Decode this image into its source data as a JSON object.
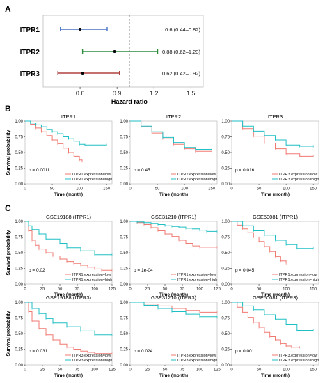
{
  "panels": {
    "A": "A",
    "B": "B",
    "C": "C"
  },
  "forest": {
    "xlabel": "Hazard ratio",
    "ticks": [
      "0.6",
      "0.9",
      "1.2",
      "1.5"
    ],
    "tick_values": [
      0.6,
      0.9,
      1.2,
      1.5
    ],
    "xlim": [
      0.3,
      1.6
    ],
    "ref": 1.0,
    "rows": [
      {
        "label": "ITPR1",
        "hr": 0.6,
        "lo": 0.44,
        "hi": 0.82,
        "text": "0.6 (0.44–0.82)",
        "color": "#4472c4"
      },
      {
        "label": "ITPR2",
        "hr": 0.88,
        "lo": 0.62,
        "hi": 1.23,
        "text": "0.88 (0.62–1.23)",
        "color": "#2e8b3e"
      },
      {
        "label": "ITPR3",
        "hr": 0.62,
        "lo": 0.42,
        "hi": 0.92,
        "text": "0.62 (0.42–0.92)",
        "color": "#b0413e"
      }
    ]
  },
  "km_common": {
    "ylabel": "Survival probability",
    "xlabel": "Time (month)",
    "yticks": [
      "0.00",
      "0.25",
      "0.50",
      "0.75",
      "1.00"
    ],
    "ytick_values": [
      0,
      0.25,
      0.5,
      0.75,
      1.0
    ],
    "low_color": "#f07a72",
    "high_color": "#1fbfc4"
  },
  "chart_data": [
    {
      "type": "line",
      "title": "ITPR1",
      "p": "p = 0.0011",
      "xticks": [
        0,
        50,
        100,
        150
      ],
      "xlim": [
        0,
        160
      ],
      "ylim": [
        0,
        1
      ],
      "series": [
        {
          "name": "ITPR1.expression=low",
          "x": [
            0,
            10,
            20,
            30,
            40,
            50,
            60,
            70,
            80,
            90,
            100,
            105
          ],
          "y": [
            1.0,
            0.95,
            0.89,
            0.83,
            0.77,
            0.7,
            0.64,
            0.57,
            0.5,
            0.44,
            0.38,
            0.36
          ]
        },
        {
          "name": "ITPR1.expression=high",
          "x": [
            0,
            10,
            20,
            30,
            40,
            50,
            60,
            70,
            80,
            90,
            100,
            110,
            125,
            150
          ],
          "y": [
            1.0,
            0.97,
            0.94,
            0.91,
            0.87,
            0.83,
            0.8,
            0.75,
            0.72,
            0.68,
            0.63,
            0.62,
            0.62,
            0.62
          ]
        }
      ]
    },
    {
      "type": "line",
      "title": "ITPR2",
      "p": "p = 0.45",
      "xticks": [
        0,
        50,
        100,
        150
      ],
      "xlim": [
        0,
        160
      ],
      "ylim": [
        0,
        1
      ],
      "series": [
        {
          "name": "ITPR2.expression=low",
          "x": [
            0,
            20,
            40,
            60,
            80,
            100,
            120,
            150
          ],
          "y": [
            1.0,
            0.91,
            0.81,
            0.72,
            0.63,
            0.56,
            0.52,
            0.52
          ]
        },
        {
          "name": "ITPR2.expression=high",
          "x": [
            0,
            20,
            40,
            60,
            80,
            100,
            120,
            150
          ],
          "y": [
            1.0,
            0.92,
            0.83,
            0.74,
            0.66,
            0.58,
            0.55,
            0.55
          ]
        }
      ]
    },
    {
      "type": "line",
      "title": "ITPR3",
      "p": "p = 0.016",
      "xticks": [
        0,
        50,
        100,
        150
      ],
      "xlim": [
        0,
        160
      ],
      "ylim": [
        0,
        1
      ],
      "series": [
        {
          "name": "ITPR3.expression=low",
          "x": [
            0,
            20,
            40,
            60,
            80,
            100,
            125,
            150
          ],
          "y": [
            1.0,
            0.88,
            0.76,
            0.65,
            0.56,
            0.48,
            0.44,
            0.44
          ]
        },
        {
          "name": "ITPR3.expression=high",
          "x": [
            0,
            20,
            40,
            60,
            80,
            100,
            125,
            150
          ],
          "y": [
            1.0,
            0.92,
            0.84,
            0.77,
            0.7,
            0.62,
            0.6,
            0.6
          ]
        }
      ]
    },
    {
      "type": "line",
      "title": "GSE19188 (ITPR1)",
      "p": "p = 0.02",
      "xticks": [
        0,
        25,
        50,
        75,
        100,
        125
      ],
      "xlim": [
        0,
        125
      ],
      "ylim": [
        0,
        1
      ],
      "series": [
        {
          "name": "ITPR1.expression=low",
          "x": [
            0,
            5,
            10,
            15,
            20,
            30,
            40,
            50,
            60,
            70,
            80,
            90,
            100,
            110,
            125
          ],
          "y": [
            1.0,
            0.85,
            0.7,
            0.62,
            0.56,
            0.5,
            0.45,
            0.4,
            0.36,
            0.33,
            0.3,
            0.27,
            0.24,
            0.22,
            0.22
          ]
        },
        {
          "name": "ITPR1.expression=high",
          "x": [
            0,
            5,
            10,
            20,
            30,
            50,
            60,
            80,
            100,
            125
          ],
          "y": [
            1.0,
            0.93,
            0.87,
            0.8,
            0.72,
            0.65,
            0.58,
            0.53,
            0.47,
            0.47
          ]
        }
      ]
    },
    {
      "type": "line",
      "title": "GSE31210 (ITPR1)",
      "p": "p = 1e-04",
      "xticks": [
        0,
        25,
        50,
        75,
        100,
        125
      ],
      "xlim": [
        0,
        125
      ],
      "ylim": [
        0,
        1
      ],
      "series": [
        {
          "name": "ITPR1.expression=low",
          "x": [
            0,
            10,
            20,
            30,
            40,
            50,
            60,
            70,
            80,
            90,
            100,
            125
          ],
          "y": [
            1.0,
            0.98,
            0.95,
            0.9,
            0.85,
            0.8,
            0.76,
            0.7,
            0.65,
            0.61,
            0.59,
            0.59
          ]
        },
        {
          "name": "ITPR1.expression=high",
          "x": [
            0,
            10,
            20,
            30,
            40,
            50,
            60,
            70,
            80,
            90,
            100,
            110,
            125
          ],
          "y": [
            1.0,
            0.99,
            0.98,
            0.97,
            0.95,
            0.93,
            0.92,
            0.91,
            0.89,
            0.88,
            0.86,
            0.84,
            0.84
          ]
        }
      ]
    },
    {
      "type": "line",
      "title": "GSE50081 (ITPR1)",
      "p": "p = 0.045",
      "xticks": [
        0,
        50,
        100,
        150
      ],
      "xlim": [
        0,
        160
      ],
      "ylim": [
        0,
        1
      ],
      "series": [
        {
          "name": "ITPR1.expression=low",
          "x": [
            0,
            10,
            20,
            30,
            40,
            50,
            60,
            70,
            80,
            90,
            100
          ],
          "y": [
            1.0,
            0.94,
            0.88,
            0.82,
            0.75,
            0.68,
            0.6,
            0.52,
            0.44,
            0.37,
            0.33
          ]
        },
        {
          "name": "ITPR1.expression=high",
          "x": [
            0,
            20,
            40,
            60,
            80,
            100,
            120,
            150
          ],
          "y": [
            1.0,
            0.93,
            0.85,
            0.78,
            0.7,
            0.63,
            0.57,
            0.57
          ]
        }
      ]
    },
    {
      "type": "line",
      "title": "GSE19188 (ITPR3)",
      "p": "p = 0.031",
      "xticks": [
        0,
        25,
        50,
        75,
        100,
        125
      ],
      "xlim": [
        0,
        125
      ],
      "ylim": [
        0,
        1
      ],
      "series": [
        {
          "name": "ITPR3.expression=low",
          "x": [
            0,
            5,
            10,
            20,
            30,
            40,
            50,
            60,
            70,
            80,
            90,
            100,
            125
          ],
          "y": [
            1.0,
            0.85,
            0.7,
            0.58,
            0.48,
            0.4,
            0.33,
            0.28,
            0.25,
            0.22,
            0.2,
            0.18,
            0.18
          ]
        },
        {
          "name": "ITPR3.expression=high",
          "x": [
            0,
            10,
            20,
            30,
            40,
            60,
            80,
            100,
            125
          ],
          "y": [
            1.0,
            0.9,
            0.82,
            0.74,
            0.67,
            0.61,
            0.54,
            0.48,
            0.48
          ]
        }
      ]
    },
    {
      "type": "line",
      "title": "GSE31210 (ITPR3)",
      "p": "p = 0.024",
      "xticks": [
        0,
        25,
        50,
        75,
        100,
        125
      ],
      "xlim": [
        0,
        125
      ],
      "ylim": [
        0,
        1
      ],
      "series": [
        {
          "name": "ITPR3.expression=low",
          "x": [
            0,
            20,
            40,
            60,
            80,
            100,
            125
          ],
          "y": [
            1.0,
            0.97,
            0.94,
            0.9,
            0.87,
            0.84,
            0.84
          ]
        },
        {
          "name": "ITPR3.expression=high",
          "x": [
            0,
            20,
            40,
            60,
            80,
            100,
            125
          ],
          "y": [
            1.0,
            0.95,
            0.9,
            0.85,
            0.81,
            0.77,
            0.76
          ]
        }
      ]
    },
    {
      "type": "line",
      "title": "GSE50081 (ITPR3)",
      "p": "p = 0.001",
      "xticks": [
        0,
        50,
        100,
        150
      ],
      "xlim": [
        0,
        160
      ],
      "ylim": [
        0,
        1
      ],
      "series": [
        {
          "name": "ITPR3.expression=low",
          "x": [
            0,
            10,
            20,
            30,
            40,
            50,
            60,
            70,
            80,
            90,
            100,
            110,
            125
          ],
          "y": [
            1.0,
            0.92,
            0.84,
            0.76,
            0.68,
            0.6,
            0.52,
            0.45,
            0.4,
            0.34,
            0.3,
            0.28,
            0.28
          ]
        },
        {
          "name": "ITPR3.expression=high",
          "x": [
            0,
            20,
            40,
            60,
            80,
            100,
            120,
            150
          ],
          "y": [
            1.0,
            0.94,
            0.88,
            0.8,
            0.73,
            0.65,
            0.55,
            0.55
          ]
        }
      ]
    }
  ]
}
